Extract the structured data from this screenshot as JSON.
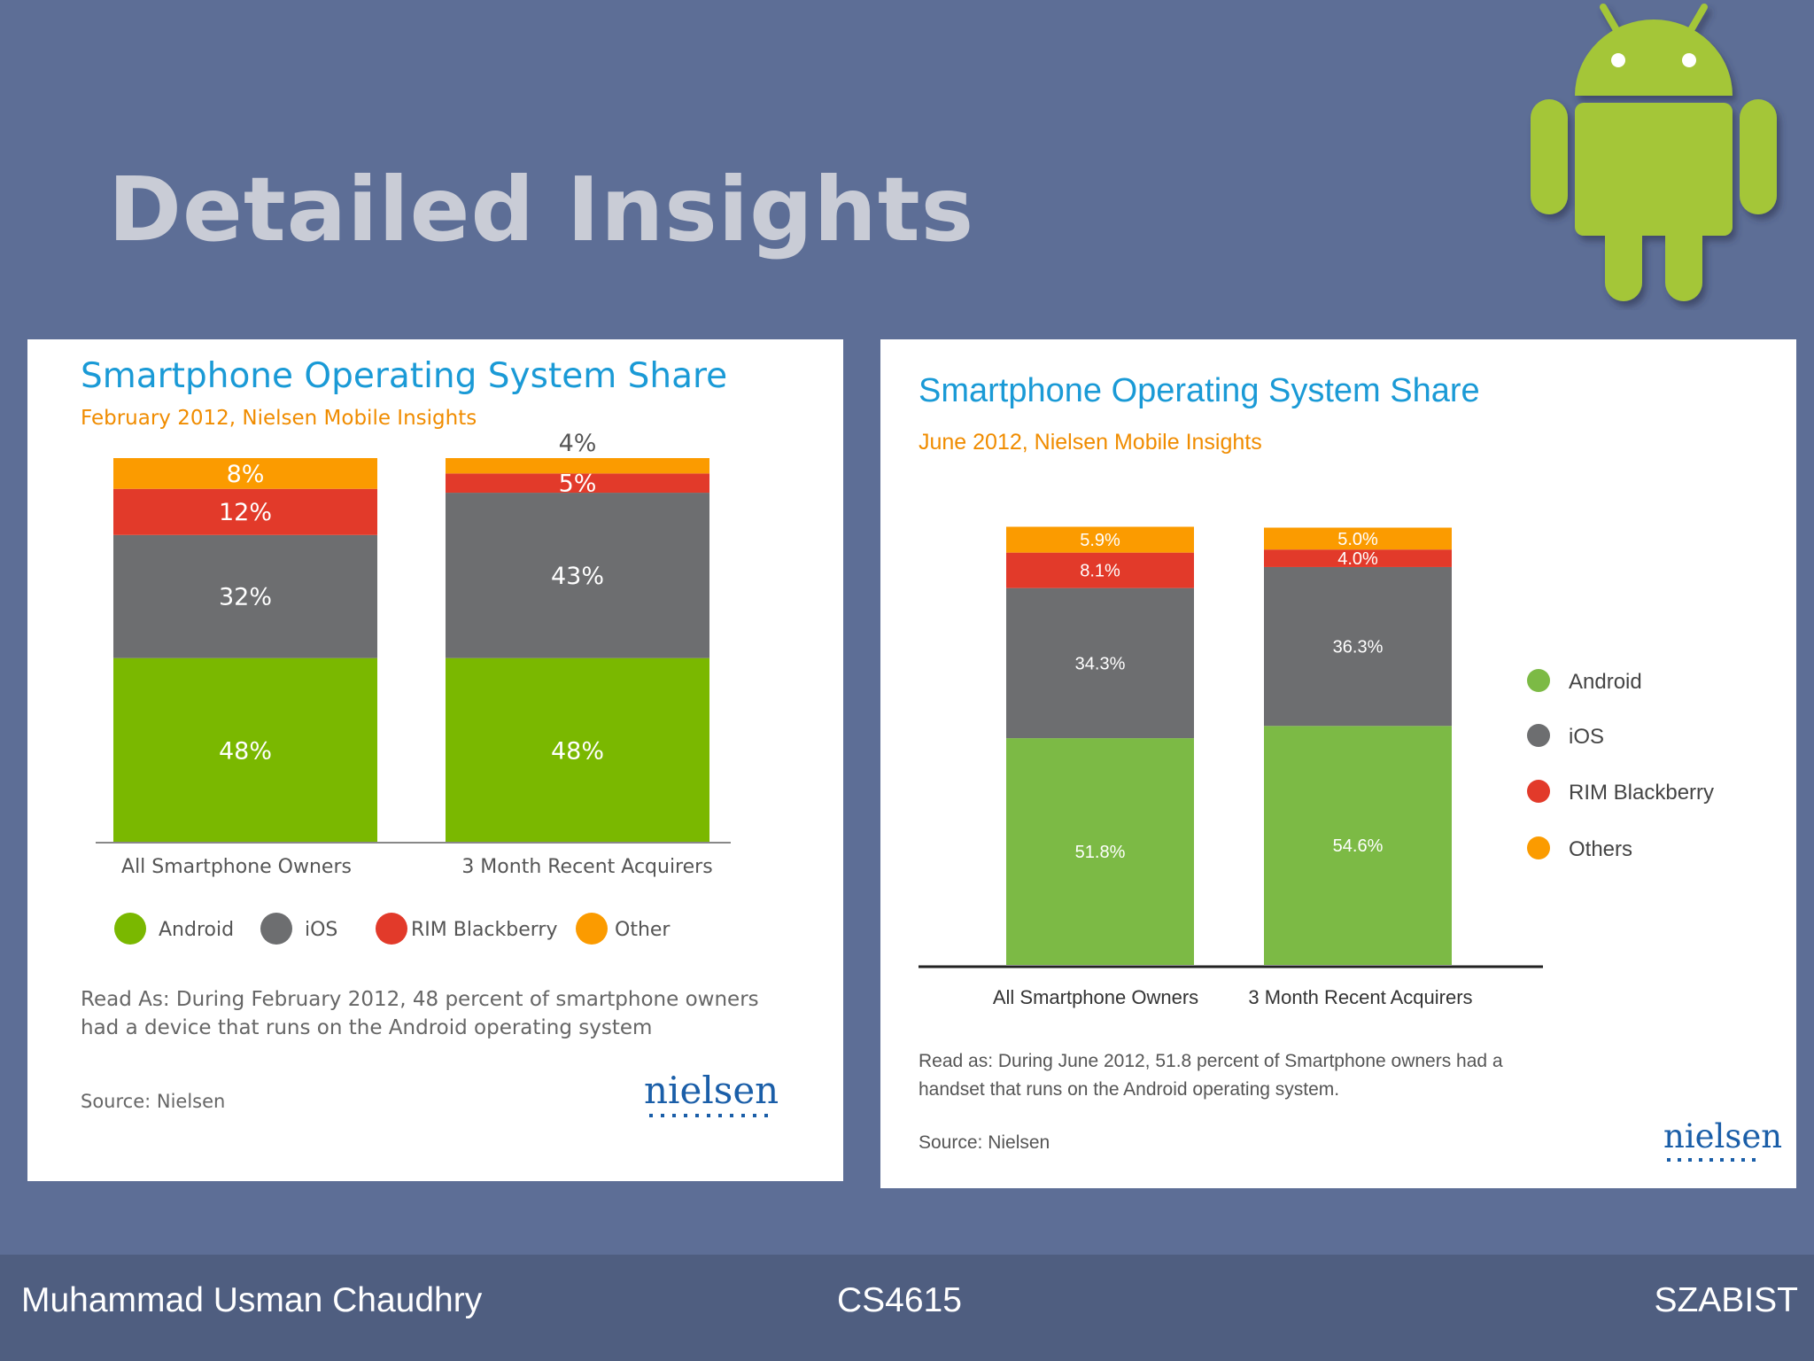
{
  "slide": {
    "title": "Detailed Insights"
  },
  "footer": {
    "left": "Muhammad Usman Chaudhry",
    "center": "CS4615",
    "right": "SZABIST"
  },
  "colors": {
    "android": "#7ab800",
    "ios": "#6d6e70",
    "rim": "#e23a2a",
    "other": "#fb9b00",
    "android2": "#7cba45",
    "title": "#1a9ad6",
    "subtitle": "#f08c00"
  },
  "chart_data": [
    {
      "type": "bar",
      "stacked": true,
      "title": "Smartphone Operating System Share",
      "subtitle": "February 2012, Nielsen Mobile Insights",
      "categories": [
        "All Smartphone Owners",
        "3 Month Recent Acquirers"
      ],
      "series": [
        {
          "name": "Android",
          "values": [
            48,
            48
          ],
          "labels": [
            "48%",
            "48%"
          ]
        },
        {
          "name": "iOS",
          "values": [
            32,
            43
          ],
          "labels": [
            "32%",
            "43%"
          ]
        },
        {
          "name": "RIM Blackberry",
          "values": [
            12,
            5
          ],
          "labels": [
            "12%",
            "5%"
          ]
        },
        {
          "name": "Other",
          "values": [
            8,
            4
          ],
          "labels": [
            "8%",
            "4%"
          ]
        }
      ],
      "ylim": [
        0,
        100
      ],
      "legend": "bottom",
      "note_line1": "Read As: During February 2012, 48 percent of smartphone owners",
      "note_line2": "had a device that runs on the Android operating system",
      "source": "Source: Nielsen",
      "brand": "nielsen"
    },
    {
      "type": "bar",
      "stacked": true,
      "title": "Smartphone Operating System Share",
      "subtitle": "June 2012, Nielsen Mobile Insights",
      "categories": [
        "All Smartphone Owners",
        "3 Month Recent Acquirers"
      ],
      "series": [
        {
          "name": "Android",
          "values": [
            51.8,
            54.6
          ],
          "labels": [
            "51.8%",
            "54.6%"
          ]
        },
        {
          "name": "iOS",
          "values": [
            34.3,
            36.3
          ],
          "labels": [
            "34.3%",
            "36.3%"
          ]
        },
        {
          "name": "RIM Blackberry",
          "values": [
            8.1,
            4.0
          ],
          "labels": [
            "8.1%",
            "4.0%"
          ]
        },
        {
          "name": "Others",
          "values": [
            5.9,
            5.0
          ],
          "labels": [
            "5.9%",
            "5.0%"
          ]
        }
      ],
      "ylim": [
        0,
        100
      ],
      "legend": "right",
      "note_line1": "Read as: During June 2012, 51.8 percent of Smartphone owners had a",
      "note_line2": "handset that runs on the Android operating system.",
      "source": "Source: Nielsen",
      "brand": "nielsen"
    }
  ]
}
